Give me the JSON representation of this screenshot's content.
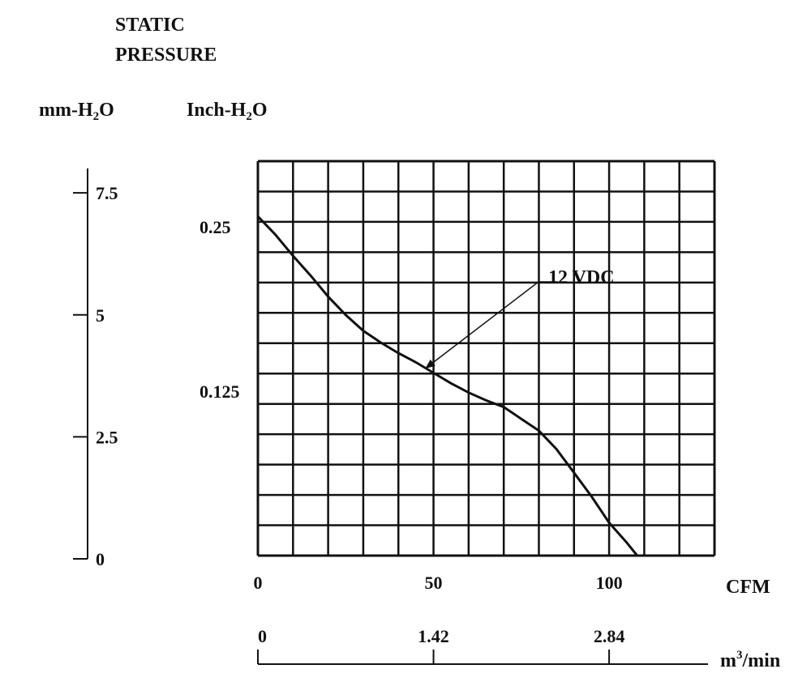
{
  "chart_data": {
    "type": "line",
    "title_line1": "STATIC",
    "title_line2": "PRESSURE",
    "left_unit": "mm-H",
    "right_unit": "Inch-H",
    "unit_subscript": "2",
    "unit_suffix": "O",
    "mm_axis": {
      "ticks": [
        "7.5",
        "5",
        "2.5",
        "0"
      ],
      "tick_values": [
        7.5,
        5,
        2.5,
        0
      ],
      "range": [
        0,
        8
      ]
    },
    "inch_axis": {
      "ticks": [
        "0.25",
        "0.125"
      ],
      "tick_values": [
        0.25,
        0.125
      ],
      "range": [
        0,
        0.3
      ]
    },
    "x_axis": {
      "unit": "CFM",
      "ticks": [
        "0",
        "50",
        "100"
      ],
      "tick_values": [
        0,
        50,
        100
      ],
      "range": [
        0,
        130
      ],
      "grid_divisions": 13
    },
    "x_axis_metric": {
      "unit_base": "m",
      "unit_sup": "3",
      "unit_suffix": "/min",
      "ticks": [
        "0",
        "1.42",
        "2.84"
      ],
      "tick_cfm": [
        0,
        50,
        100
      ]
    },
    "grid": true,
    "y_grid_divisions": 13,
    "series": [
      {
        "name": "12 VDC",
        "x": [
          0,
          5,
          10,
          15,
          20,
          25,
          30,
          35,
          40,
          45,
          50,
          55,
          60,
          65,
          70,
          75,
          80,
          85,
          90,
          95,
          100,
          105,
          108
        ],
        "y": [
          0.258,
          0.244,
          0.228,
          0.213,
          0.197,
          0.183,
          0.171,
          0.162,
          0.154,
          0.147,
          0.139,
          0.131,
          0.124,
          0.118,
          0.113,
          0.104,
          0.095,
          0.081,
          0.063,
          0.045,
          0.025,
          0.01,
          0.0
        ]
      }
    ],
    "annotation": {
      "text": "12 VDC",
      "points_to_x": 48,
      "points_to_y": 0.143
    }
  }
}
